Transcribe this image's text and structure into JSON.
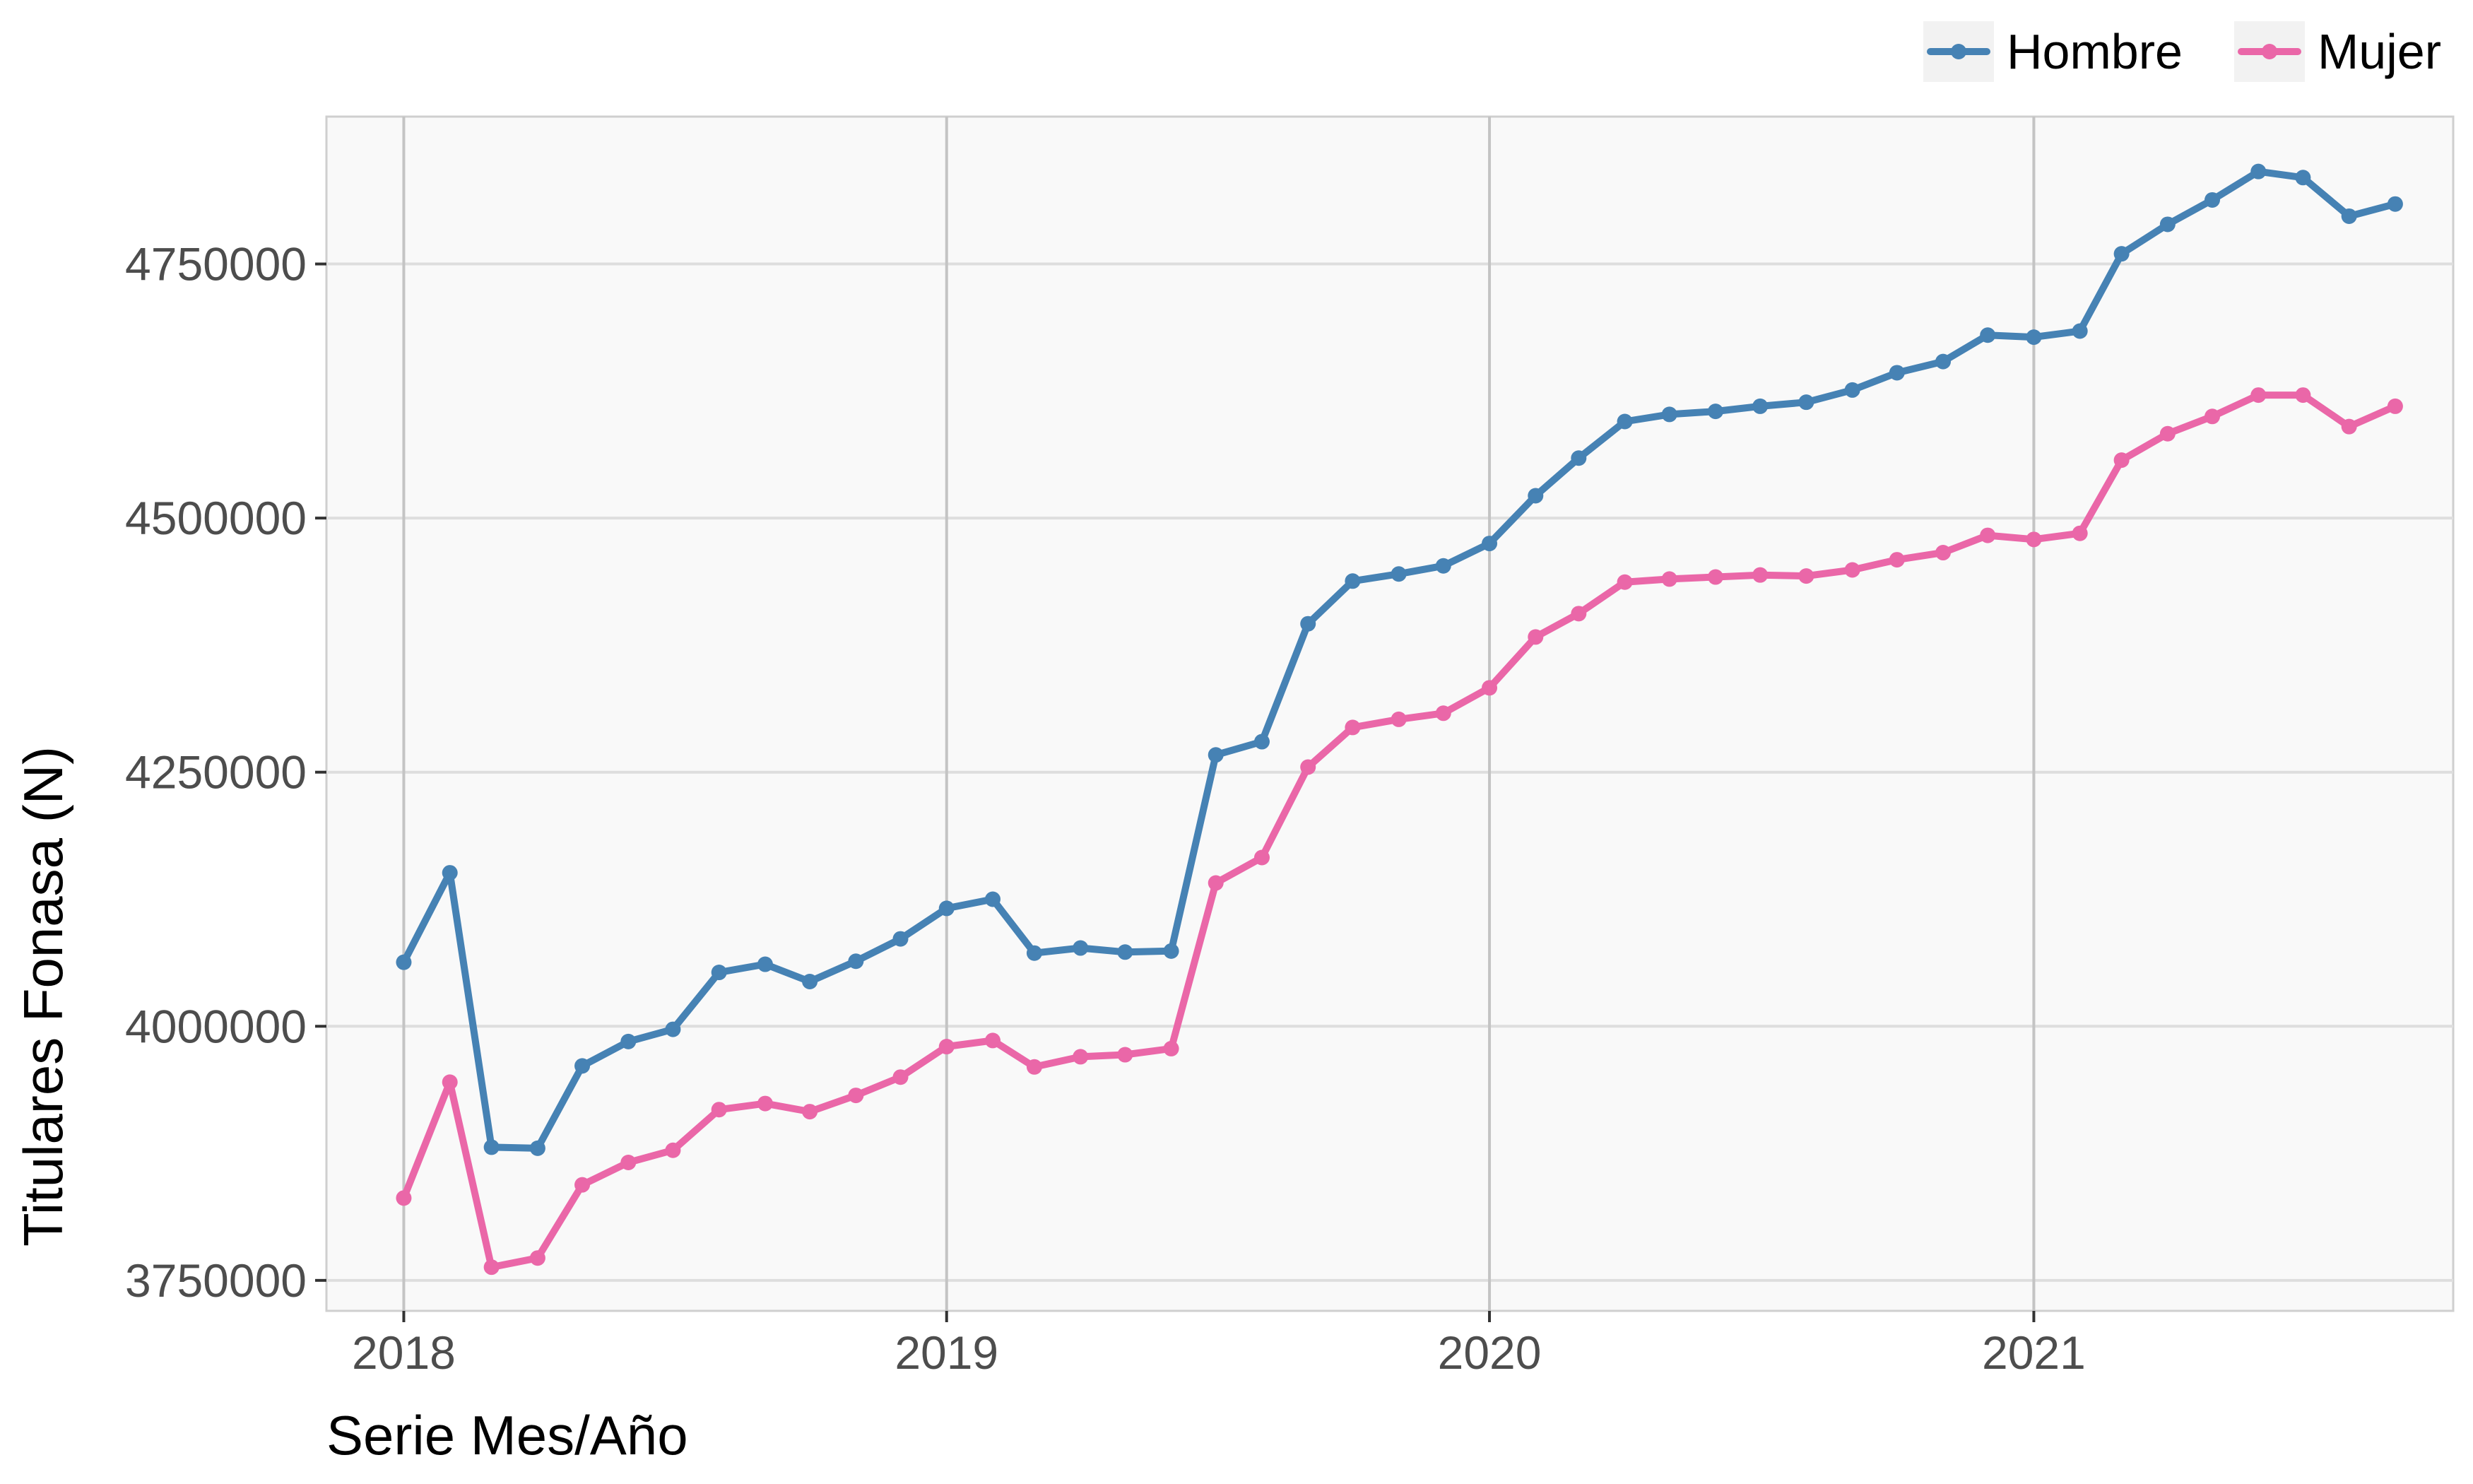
{
  "chart_data": {
    "type": "line",
    "title": "",
    "xlabel": "Serie Mes/Año",
    "ylabel": "Titulares Fonasa (N)",
    "x_tick_labels": [
      "2018",
      "2019",
      "2020",
      "2021"
    ],
    "y_tick_labels": [
      "3750000",
      "4000000",
      "4250000",
      "4500000",
      "4750000"
    ],
    "y_ticks": [
      3750000,
      4000000,
      4250000,
      4500000,
      4750000
    ],
    "ylim": [
      3720000,
      4895000
    ],
    "xlim": [
      "2017-11-10",
      "2021-10-10"
    ],
    "grid": true,
    "legend_position": "top-right",
    "x": [
      "2018-01",
      "2018-02",
      "2018-03",
      "2018-04",
      "2018-05",
      "2018-06",
      "2018-07",
      "2018-08",
      "2018-09",
      "2018-10",
      "2018-11",
      "2018-12",
      "2019-01",
      "2019-02",
      "2019-03",
      "2019-04",
      "2019-05",
      "2019-06",
      "2019-07",
      "2019-08",
      "2019-09",
      "2019-10",
      "2019-11",
      "2019-12",
      "2020-01",
      "2020-02",
      "2020-03",
      "2020-04",
      "2020-05",
      "2020-06",
      "2020-07",
      "2020-08",
      "2020-09",
      "2020-10",
      "2020-11",
      "2020-12",
      "2021-01",
      "2021-02",
      "2021-03",
      "2021-04",
      "2021-05",
      "2021-06",
      "2021-07",
      "2021-08",
      "2021-09"
    ],
    "series": [
      {
        "name": "Hombre",
        "color": "#4682b4",
        "values": [
          4063000,
          4151000,
          3881000,
          3880000,
          3961000,
          3985000,
          3997000,
          4053000,
          4061000,
          4044000,
          4064000,
          4086000,
          4116000,
          4125000,
          4072000,
          4077000,
          4073000,
          4074000,
          4267000,
          4280000,
          4396000,
          4438000,
          4445000,
          4453000,
          4475000,
          4522000,
          4559000,
          4595000,
          4602000,
          4605000,
          4610000,
          4614000,
          4626000,
          4643000,
          4654000,
          4680000,
          4678000,
          4684000,
          4760000,
          4789000,
          4813000,
          4841000,
          4835000,
          4797000,
          4809000
        ]
      },
      {
        "name": "Mujer",
        "color": "#ea67a8",
        "values": [
          3831000,
          3945000,
          3763000,
          3772000,
          3844000,
          3866000,
          3878000,
          3918000,
          3924000,
          3916000,
          3932000,
          3950000,
          3980000,
          3986000,
          3960000,
          3970000,
          3972000,
          3978000,
          4141000,
          4166000,
          4255000,
          4294000,
          4302000,
          4308000,
          4333000,
          4383000,
          4406000,
          4437000,
          4440000,
          4442000,
          4444000,
          4443000,
          4449000,
          4459000,
          4466000,
          4483000,
          4479000,
          4485000,
          4557000,
          4583000,
          4600000,
          4621000,
          4621000,
          4590000,
          4610000
        ]
      }
    ]
  }
}
